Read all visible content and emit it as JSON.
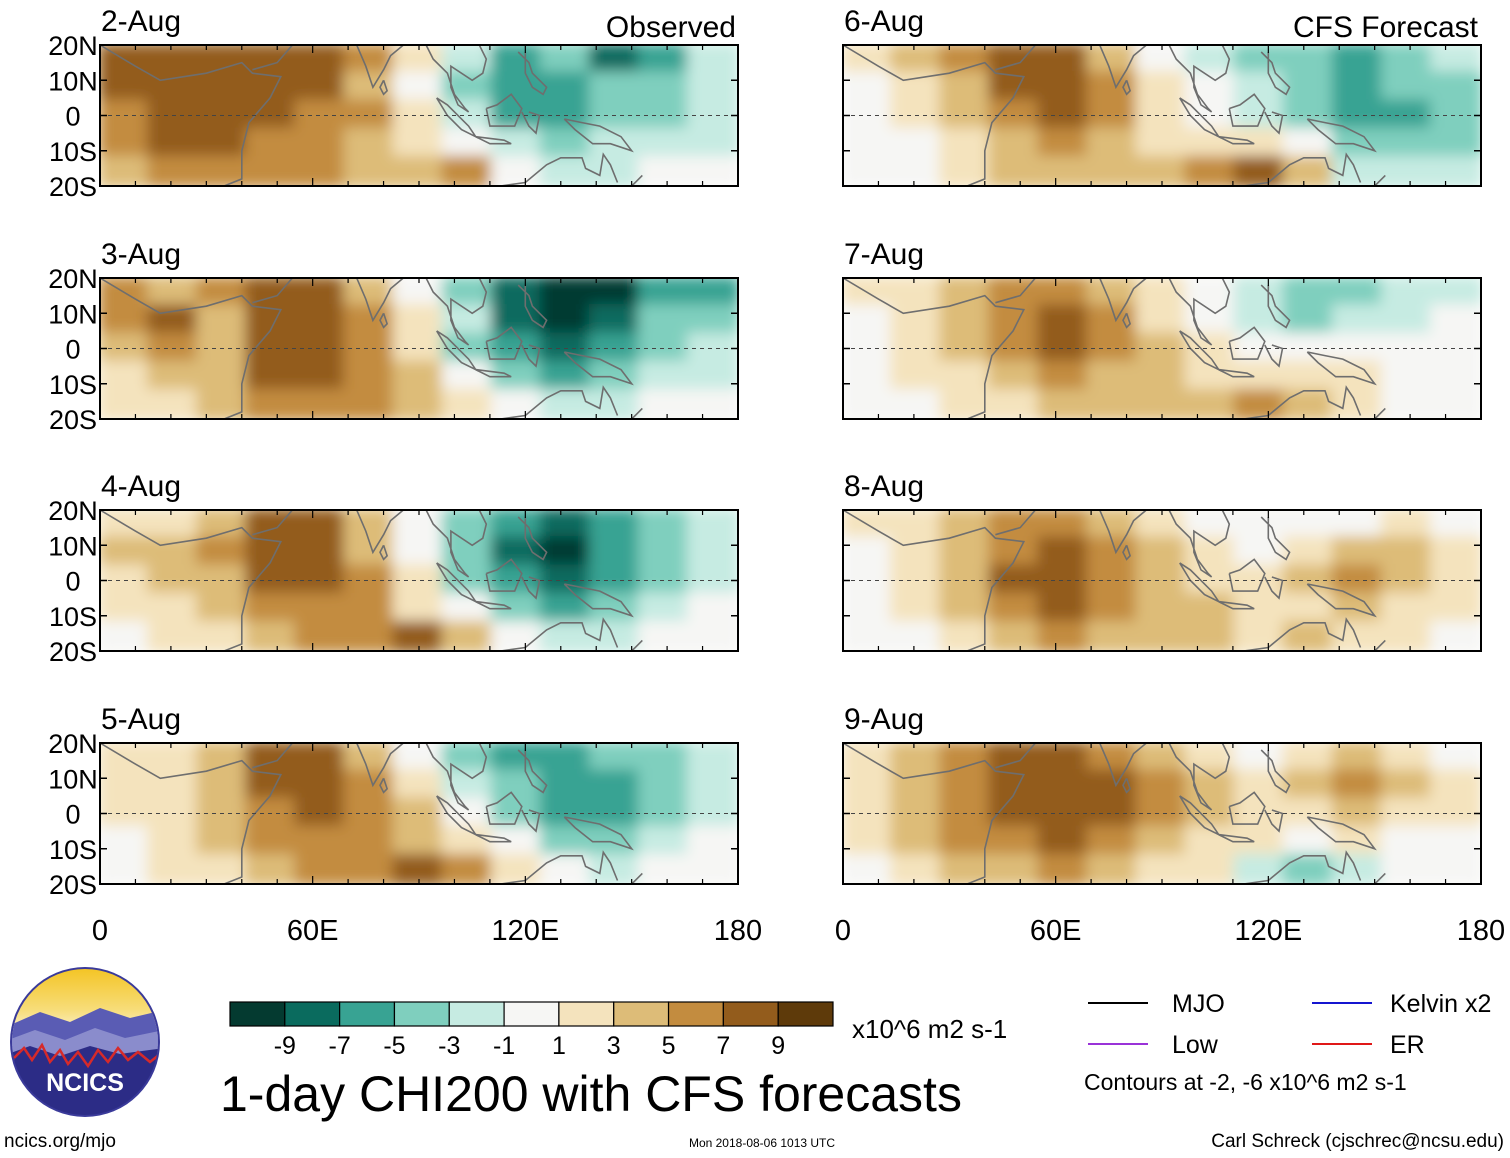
{
  "chart_data": {
    "type": "heatmap",
    "title": "1-day CHI200 with CFS forecasts",
    "units": "x10^6 m2 s-1",
    "column_titles": [
      "Observed",
      "CFS Forecast"
    ],
    "panels": [
      {
        "date": "2-Aug",
        "column": "Observed",
        "values": [
          [
            9,
            9,
            9,
            9,
            9,
            7,
            3,
            -1,
            -5,
            -3,
            -7,
            -5,
            -1
          ],
          [
            9,
            9,
            9,
            9,
            9,
            5,
            1,
            -3,
            -5,
            -5,
            -3,
            -3,
            -1
          ],
          [
            7,
            9,
            9,
            9,
            7,
            7,
            3,
            -1,
            -5,
            -5,
            -3,
            -3,
            -1
          ],
          [
            7,
            9,
            9,
            7,
            7,
            5,
            3,
            1,
            -1,
            -3,
            -1,
            -1,
            -1
          ],
          [
            5,
            7,
            7,
            7,
            7,
            5,
            5,
            7,
            1,
            -1,
            -1,
            1,
            1
          ]
        ]
      },
      {
        "date": "3-Aug",
        "column": "Observed",
        "values": [
          [
            7,
            5,
            7,
            9,
            9,
            5,
            1,
            -3,
            -7,
            -9,
            -9,
            -5,
            -5
          ],
          [
            7,
            9,
            5,
            9,
            9,
            7,
            3,
            -1,
            -7,
            -9,
            -7,
            -3,
            -3
          ],
          [
            5,
            7,
            5,
            9,
            9,
            7,
            3,
            -3,
            -5,
            -7,
            -5,
            -3,
            -1
          ],
          [
            3,
            5,
            5,
            9,
            9,
            7,
            5,
            1,
            -3,
            -5,
            -3,
            -1,
            -1
          ],
          [
            3,
            3,
            5,
            7,
            7,
            7,
            5,
            3,
            1,
            -1,
            -1,
            1,
            1
          ]
        ]
      },
      {
        "date": "4-Aug",
        "column": "Observed",
        "values": [
          [
            3,
            3,
            5,
            9,
            9,
            5,
            1,
            -3,
            -5,
            -7,
            -5,
            -3,
            -1
          ],
          [
            5,
            5,
            7,
            9,
            9,
            5,
            1,
            -3,
            -7,
            -9,
            -5,
            -3,
            -1
          ],
          [
            3,
            5,
            5,
            9,
            9,
            7,
            3,
            -3,
            -5,
            -7,
            -5,
            -3,
            -1
          ],
          [
            3,
            3,
            5,
            7,
            7,
            7,
            3,
            1,
            -3,
            -5,
            -3,
            -1,
            1
          ],
          [
            1,
            3,
            3,
            5,
            7,
            7,
            9,
            5,
            1,
            -1,
            -1,
            1,
            1
          ]
        ]
      },
      {
        "date": "5-Aug",
        "column": "Observed",
        "values": [
          [
            3,
            3,
            5,
            9,
            9,
            5,
            1,
            -3,
            -5,
            -5,
            -3,
            -3,
            -1
          ],
          [
            3,
            3,
            5,
            9,
            9,
            7,
            3,
            -1,
            -3,
            -5,
            -5,
            -3,
            -1
          ],
          [
            3,
            3,
            5,
            7,
            9,
            7,
            5,
            1,
            -3,
            -5,
            -5,
            -3,
            -1
          ],
          [
            1,
            3,
            5,
            7,
            7,
            7,
            5,
            3,
            1,
            -3,
            -3,
            -1,
            1
          ],
          [
            1,
            3,
            3,
            5,
            7,
            7,
            9,
            7,
            3,
            1,
            -1,
            1,
            1
          ]
        ]
      },
      {
        "date": "6-Aug",
        "column": "CFS Forecast",
        "values": [
          [
            3,
            5,
            7,
            9,
            9,
            5,
            1,
            -1,
            -3,
            -3,
            -5,
            -3,
            -1
          ],
          [
            1,
            3,
            5,
            9,
            9,
            7,
            3,
            1,
            -1,
            -3,
            -5,
            -3,
            -3
          ],
          [
            1,
            3,
            5,
            7,
            9,
            7,
            3,
            1,
            -1,
            -3,
            -5,
            -5,
            -3
          ],
          [
            1,
            1,
            3,
            5,
            7,
            5,
            3,
            3,
            3,
            1,
            -3,
            -3,
            -3
          ],
          [
            1,
            1,
            3,
            5,
            5,
            5,
            5,
            7,
            9,
            5,
            -1,
            -1,
            -1
          ]
        ]
      },
      {
        "date": "7-Aug",
        "column": "CFS Forecast",
        "values": [
          [
            3,
            3,
            5,
            7,
            7,
            5,
            3,
            1,
            -1,
            -3,
            -3,
            -1,
            -1
          ],
          [
            1,
            3,
            5,
            7,
            9,
            7,
            3,
            1,
            -1,
            -3,
            -1,
            -1,
            1
          ],
          [
            1,
            3,
            5,
            7,
            9,
            7,
            5,
            3,
            1,
            1,
            1,
            1,
            1
          ],
          [
            1,
            3,
            3,
            5,
            7,
            5,
            5,
            3,
            3,
            3,
            3,
            1,
            1
          ],
          [
            1,
            1,
            3,
            3,
            5,
            5,
            5,
            5,
            7,
            5,
            3,
            1,
            1
          ]
        ]
      },
      {
        "date": "8-Aug",
        "column": "CFS Forecast",
        "values": [
          [
            3,
            3,
            5,
            7,
            7,
            5,
            3,
            1,
            1,
            1,
            1,
            3,
            1
          ],
          [
            1,
            3,
            5,
            7,
            9,
            7,
            5,
            3,
            1,
            3,
            5,
            5,
            3
          ],
          [
            1,
            3,
            5,
            9,
            9,
            7,
            5,
            3,
            3,
            5,
            7,
            5,
            3
          ],
          [
            1,
            3,
            5,
            7,
            9,
            7,
            5,
            5,
            3,
            3,
            5,
            3,
            3
          ],
          [
            1,
            1,
            3,
            5,
            7,
            5,
            5,
            5,
            3,
            5,
            3,
            3,
            1
          ]
        ]
      },
      {
        "date": "9-Aug",
        "column": "CFS Forecast",
        "values": [
          [
            3,
            5,
            7,
            9,
            9,
            7,
            5,
            3,
            1,
            3,
            5,
            3,
            1
          ],
          [
            3,
            5,
            7,
            9,
            9,
            9,
            7,
            5,
            3,
            5,
            7,
            5,
            3
          ],
          [
            3,
            5,
            7,
            9,
            9,
            9,
            7,
            5,
            3,
            3,
            5,
            3,
            3
          ],
          [
            3,
            5,
            7,
            7,
            9,
            7,
            5,
            3,
            3,
            1,
            3,
            1,
            1
          ],
          [
            1,
            3,
            5,
            5,
            7,
            5,
            3,
            3,
            -1,
            -3,
            -1,
            1,
            1
          ]
        ]
      }
    ],
    "lat_ticks": [
      "20N",
      "10N",
      "0",
      "10S",
      "20S"
    ],
    "lon_ticks": [
      "0",
      "60E",
      "120E",
      "180"
    ],
    "lon_range": [
      0,
      180
    ],
    "lat_range": [
      -20,
      20
    ],
    "colorbar": {
      "ticks": [
        "-9",
        "-7",
        "-5",
        "-3",
        "-1",
        "1",
        "3",
        "5",
        "7",
        "9"
      ],
      "colors": [
        "#043a30",
        "#0a6b5e",
        "#38a393",
        "#7fcfbe",
        "#c6ebe2",
        "#f6f6f4",
        "#f4e3bd",
        "#ddbc78",
        "#c38c3f",
        "#935c1c",
        "#5e3a0a"
      ]
    },
    "legend": [
      {
        "label": "MJO",
        "color": "#000000"
      },
      {
        "label": "Kelvin x2",
        "color": "#1515d0"
      },
      {
        "label": "Low",
        "color": "#9a32d8"
      },
      {
        "label": "ER",
        "color": "#e01818"
      }
    ],
    "contour_note": "Contours at -2, -6 x10^6 m2 s-1"
  },
  "footer": {
    "logo_text": "NCICS",
    "url": "ncics.org/mjo",
    "timestamp": "Mon 2018-08-06 1013 UTC",
    "author": "Carl Schreck (cjschrec@ncsu.edu)"
  },
  "marker": {
    "symbol": "S"
  }
}
